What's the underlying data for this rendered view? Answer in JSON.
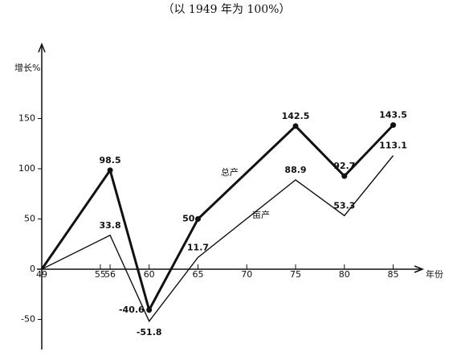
{
  "chart_data": {
    "type": "line",
    "title": "（以 1949 年为 100%）",
    "y_label": "增长%",
    "x_label": "年份",
    "xlim": [
      49,
      88
    ],
    "ylim": [
      -80,
      224
    ],
    "xticks": [
      49,
      55,
      56,
      60,
      65,
      70,
      75,
      80,
      85
    ],
    "yticks": [
      -50,
      0,
      50,
      100,
      150
    ],
    "series": [
      {
        "name": "总产",
        "color": "#111111",
        "x": [
          49,
          56,
          60,
          65,
          75,
          80,
          85
        ],
        "values": [
          0,
          98.5,
          -40.6,
          50,
          142.5,
          92.7,
          143.5
        ]
      },
      {
        "name": "亩产",
        "color": "#111111",
        "x": [
          49,
          56,
          60,
          65,
          75,
          80,
          85
        ],
        "values": [
          0,
          33.8,
          -51.8,
          11.7,
          88.9,
          53.3,
          113.1
        ]
      }
    ]
  }
}
